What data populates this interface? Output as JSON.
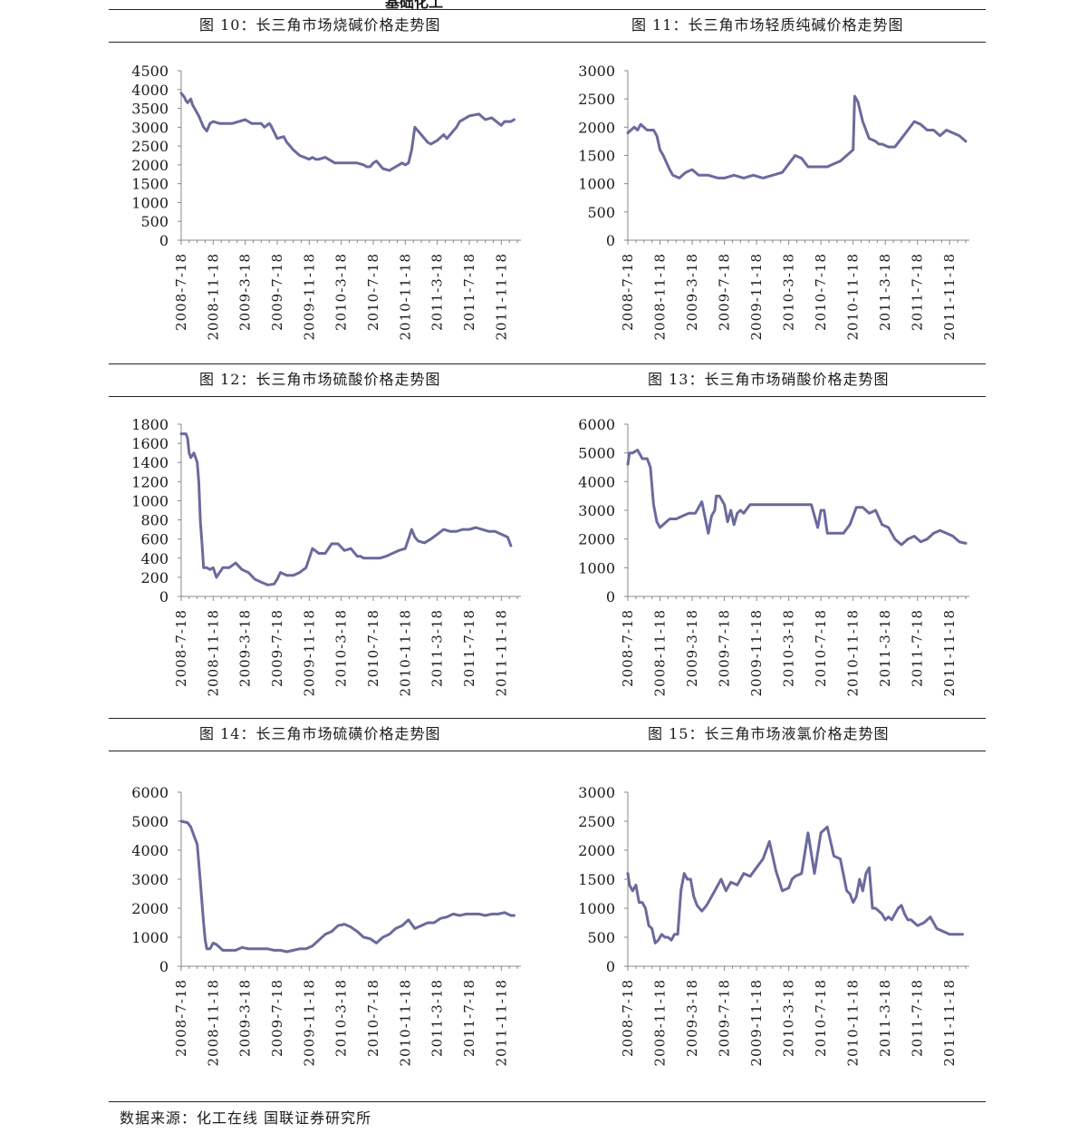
{
  "top_fragment": "基础化工",
  "source": "数据来源：化工在线  国联证券研究所",
  "line_color": "#6a6a9e",
  "x_labels": [
    "2008-7-18",
    "2008-11-18",
    "2009-3-18",
    "2009-7-18",
    "2009-11-18",
    "2010-3-18",
    "2010-7-18",
    "2010-11-18",
    "2011-3-18",
    "2011-7-18",
    "2011-11-18"
  ],
  "chart_data": [
    {
      "type": "line",
      "title": "图 10：长三角市场烧碱价格走势图",
      "ylim": [
        0,
        4500
      ],
      "yticks": [
        "0",
        "500",
        "1000",
        "1500",
        "2000",
        "2500",
        "3000",
        "3500",
        "4000",
        "4500"
      ],
      "x": [
        0,
        0.05,
        0.1,
        0.15,
        0.2,
        0.3,
        0.35,
        0.45,
        0.55,
        0.7,
        0.8,
        0.9,
        1,
        1.2,
        1.4,
        1.6,
        1.8,
        2,
        2.2,
        2.5,
        2.6,
        2.75,
        2.8,
        3,
        3.2,
        3.3,
        3.5,
        3.7,
        4,
        4.1,
        4.2,
        4.3,
        4.5,
        4.8,
        5,
        5.2,
        5.5,
        5.7,
        5.8,
        5.9,
        6,
        6.1,
        6.3,
        6.5,
        6.6,
        6.8,
        6.9,
        7,
        7.1,
        7.2,
        7.3,
        7.5,
        7.6,
        7.7,
        7.8,
        8,
        8.2,
        8.3,
        8.5,
        8.6,
        8.7,
        9,
        9.3,
        9.5,
        9.7,
        10,
        10.1,
        10.3,
        10.4
      ],
      "y": [
        3900,
        3850,
        3800,
        3700,
        3650,
        3750,
        3600,
        3450,
        3300,
        3000,
        2900,
        3100,
        3150,
        3100,
        3100,
        3100,
        3150,
        3200,
        3100,
        3100,
        3000,
        3100,
        3050,
        2700,
        2750,
        2600,
        2400,
        2250,
        2150,
        2200,
        2150,
        2150,
        2200,
        2050,
        2050,
        2050,
        2050,
        2000,
        1950,
        1950,
        2050,
        2100,
        1900,
        1850,
        1900,
        2000,
        2050,
        2000,
        2050,
        2400,
        3000,
        2800,
        2700,
        2600,
        2550,
        2650,
        2800,
        2700,
        2900,
        3000,
        3150,
        3300,
        3350,
        3200,
        3250,
        3050,
        3150,
        3150,
        3200
      ]
    },
    {
      "type": "line",
      "title": "图 11：长三角市场轻质纯碱价格走势图",
      "ylim": [
        0,
        3000
      ],
      "yticks": [
        "0",
        "500",
        "1000",
        "1500",
        "2000",
        "2500",
        "3000"
      ],
      "x": [
        0,
        0.2,
        0.3,
        0.4,
        0.6,
        0.8,
        0.9,
        1,
        1.1,
        1.3,
        1.4,
        1.6,
        1.8,
        2,
        2.2,
        2.5,
        2.8,
        3,
        3.3,
        3.6,
        3.9,
        4.2,
        4.5,
        4.8,
        5,
        5.2,
        5.4,
        5.6,
        5.9,
        6.2,
        6.4,
        6.6,
        6.8,
        7,
        7.05,
        7.15,
        7.3,
        7.5,
        7.7,
        7.8,
        7.9,
        8.1,
        8.3,
        8.5,
        8.7,
        8.9,
        9.1,
        9.3,
        9.5,
        9.7,
        9.9,
        10.1,
        10.3,
        10.5
      ],
      "y": [
        1900,
        2000,
        1950,
        2050,
        1950,
        1950,
        1850,
        1600,
        1500,
        1250,
        1150,
        1100,
        1200,
        1250,
        1150,
        1150,
        1100,
        1100,
        1150,
        1100,
        1150,
        1100,
        1150,
        1200,
        1350,
        1500,
        1450,
        1300,
        1300,
        1300,
        1350,
        1400,
        1500,
        1600,
        2550,
        2450,
        2100,
        1800,
        1750,
        1700,
        1700,
        1650,
        1650,
        1800,
        1950,
        2100,
        2050,
        1950,
        1950,
        1850,
        1950,
        1900,
        1850,
        1750
      ]
    },
    {
      "type": "line",
      "title": "图 12：长三角市场硫酸价格走势图",
      "ylim": [
        0,
        1800
      ],
      "yticks": [
        "0",
        "200",
        "400",
        "600",
        "800",
        "1000",
        "1200",
        "1400",
        "1600",
        "1800"
      ],
      "x": [
        0,
        0.15,
        0.2,
        0.25,
        0.3,
        0.4,
        0.5,
        0.55,
        0.6,
        0.65,
        0.7,
        0.8,
        0.9,
        1,
        1.1,
        1.3,
        1.5,
        1.7,
        1.9,
        2.1,
        2.3,
        2.5,
        2.7,
        2.9,
        3,
        3.1,
        3.3,
        3.5,
        3.7,
        3.9,
        4.1,
        4.3,
        4.5,
        4.7,
        4.9,
        5.1,
        5.3,
        5.5,
        5.6,
        5.7,
        5.8,
        6,
        6.2,
        6.4,
        6.6,
        6.8,
        7,
        7.1,
        7.2,
        7.3,
        7.4,
        7.6,
        7.8,
        8,
        8.2,
        8.4,
        8.6,
        8.8,
        9,
        9.2,
        9.4,
        9.6,
        9.8,
        10,
        10.2,
        10.3
      ],
      "y": [
        1700,
        1700,
        1650,
        1500,
        1450,
        1500,
        1400,
        1200,
        780,
        550,
        300,
        300,
        280,
        300,
        200,
        300,
        300,
        350,
        280,
        250,
        180,
        150,
        120,
        130,
        180,
        250,
        220,
        220,
        250,
        300,
        500,
        450,
        450,
        550,
        550,
        480,
        500,
        420,
        420,
        400,
        400,
        400,
        400,
        420,
        450,
        480,
        500,
        600,
        700,
        620,
        580,
        560,
        600,
        650,
        700,
        680,
        680,
        700,
        700,
        720,
        700,
        680,
        680,
        650,
        620,
        530
      ]
    },
    {
      "type": "line",
      "title": "图 13：长三角市场硝酸价格走势图",
      "ylim": [
        0,
        6000
      ],
      "yticks": [
        "0",
        "1000",
        "2000",
        "3000",
        "4000",
        "5000",
        "6000"
      ],
      "x": [
        0,
        0.05,
        0.15,
        0.3,
        0.45,
        0.6,
        0.7,
        0.8,
        0.9,
        1,
        1.1,
        1.3,
        1.5,
        1.7,
        1.9,
        2.1,
        2.3,
        2.5,
        2.6,
        2.7,
        2.75,
        2.85,
        3,
        3.1,
        3.2,
        3.3,
        3.4,
        3.5,
        3.6,
        3.8,
        4,
        4.5,
        5,
        5.5,
        5.7,
        5.9,
        6,
        6.1,
        6.2,
        6.3,
        6.5,
        6.7,
        6.9,
        7.1,
        7.3,
        7.5,
        7.7,
        7.9,
        8.1,
        8.3,
        8.5,
        8.7,
        8.9,
        9.1,
        9.3,
        9.5,
        9.7,
        9.9,
        10.1,
        10.3,
        10.5
      ],
      "y": [
        4600,
        5000,
        5000,
        5100,
        4800,
        4800,
        4500,
        3200,
        2600,
        2400,
        2500,
        2700,
        2700,
        2800,
        2900,
        2900,
        3300,
        2200,
        2800,
        3000,
        3500,
        3500,
        3200,
        2600,
        3000,
        2500,
        2900,
        3000,
        2900,
        3200,
        3200,
        3200,
        3200,
        3200,
        3200,
        2400,
        3000,
        3000,
        2200,
        2200,
        2200,
        2200,
        2500,
        3100,
        3100,
        2900,
        3000,
        2500,
        2400,
        2000,
        1800,
        2000,
        2100,
        1900,
        2000,
        2200,
        2300,
        2200,
        2100,
        1900,
        1850
      ]
    },
    {
      "type": "line",
      "title": "图 14：长三角市场硫磺价格走势图",
      "ylim": [
        0,
        6000
      ],
      "yticks": [
        "0",
        "1000",
        "2000",
        "3000",
        "4000",
        "5000",
        "6000"
      ],
      "x": [
        0,
        0.2,
        0.3,
        0.4,
        0.5,
        0.6,
        0.7,
        0.75,
        0.8,
        0.9,
        1,
        1.1,
        1.3,
        1.5,
        1.7,
        1.9,
        2.1,
        2.3,
        2.5,
        2.7,
        2.9,
        3.1,
        3.3,
        3.5,
        3.7,
        3.9,
        4.1,
        4.3,
        4.5,
        4.7,
        4.9,
        5.1,
        5.3,
        5.5,
        5.7,
        5.9,
        6.1,
        6.3,
        6.5,
        6.7,
        6.9,
        7.1,
        7.3,
        7.5,
        7.7,
        7.9,
        8.1,
        8.3,
        8.5,
        8.7,
        8.9,
        9.1,
        9.3,
        9.5,
        9.7,
        9.9,
        10.1,
        10.3,
        10.4
      ],
      "y": [
        5000,
        4950,
        4800,
        4500,
        4200,
        2900,
        1500,
        900,
        600,
        600,
        800,
        750,
        550,
        550,
        550,
        650,
        600,
        600,
        600,
        600,
        550,
        550,
        500,
        550,
        600,
        600,
        700,
        900,
        1100,
        1200,
        1400,
        1450,
        1350,
        1200,
        1000,
        950,
        800,
        1000,
        1100,
        1300,
        1400,
        1600,
        1300,
        1400,
        1500,
        1500,
        1650,
        1700,
        1800,
        1750,
        1800,
        1800,
        1800,
        1750,
        1800,
        1800,
        1850,
        1750,
        1750
      ]
    },
    {
      "type": "line",
      "title": "图 15：长三角市场液氯价格走势图",
      "ylim": [
        0,
        3000
      ],
      "yticks": [
        "0",
        "500",
        "1000",
        "1500",
        "2000",
        "2500",
        "3000"
      ],
      "x": [
        0,
        0.05,
        0.15,
        0.25,
        0.35,
        0.45,
        0.55,
        0.65,
        0.75,
        0.85,
        0.95,
        1.05,
        1.15,
        1.25,
        1.35,
        1.45,
        1.55,
        1.65,
        1.75,
        1.85,
        1.95,
        2.05,
        2.15,
        2.3,
        2.45,
        2.6,
        2.75,
        2.9,
        3.05,
        3.2,
        3.4,
        3.6,
        3.8,
        4,
        4.2,
        4.4,
        4.6,
        4.8,
        5,
        5.1,
        5.2,
        5.4,
        5.6,
        5.8,
        6,
        6.2,
        6.4,
        6.6,
        6.8,
        6.9,
        7,
        7.1,
        7.2,
        7.3,
        7.4,
        7.5,
        7.6,
        7.7,
        7.8,
        7.9,
        8,
        8.1,
        8.2,
        8.3,
        8.4,
        8.5,
        8.6,
        8.7,
        8.8,
        8.9,
        9,
        9.2,
        9.4,
        9.6,
        9.8,
        10,
        10.2,
        10.4
      ],
      "y": [
        1600,
        1400,
        1300,
        1400,
        1100,
        1100,
        1000,
        700,
        650,
        400,
        450,
        550,
        500,
        500,
        450,
        550,
        550,
        1300,
        1600,
        1500,
        1500,
        1200,
        1050,
        950,
        1050,
        1200,
        1350,
        1500,
        1300,
        1450,
        1400,
        1600,
        1550,
        1700,
        1850,
        2150,
        1650,
        1300,
        1350,
        1500,
        1550,
        1600,
        2300,
        1600,
        2300,
        2400,
        1900,
        1850,
        1300,
        1250,
        1100,
        1200,
        1500,
        1300,
        1600,
        1700,
        1000,
        1000,
        950,
        900,
        800,
        850,
        800,
        900,
        1000,
        1050,
        900,
        800,
        800,
        750,
        700,
        750,
        850,
        650,
        600,
        550,
        550,
        550
      ]
    }
  ]
}
